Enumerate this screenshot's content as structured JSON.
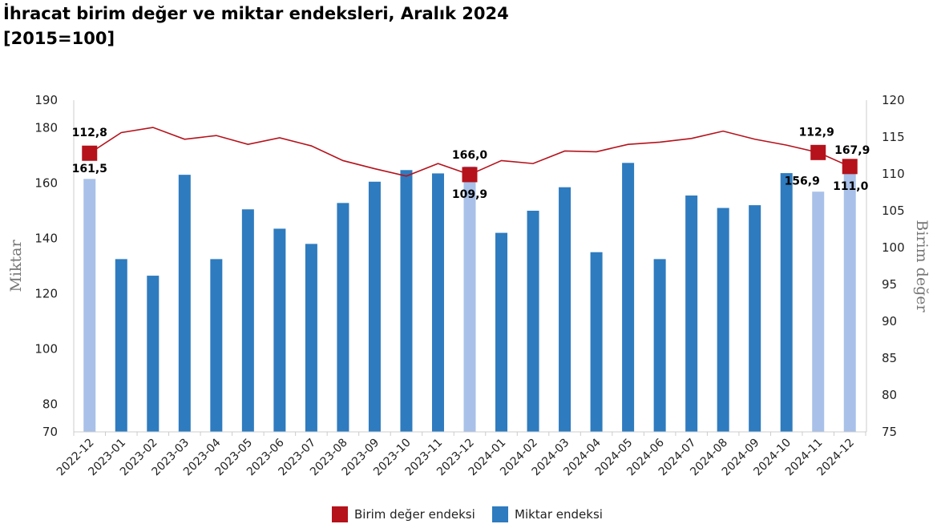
{
  "chart_data": {
    "type": "bar+line",
    "title": "İhracat birim değer ve miktar endeksleri, Aralık 2024",
    "subtitle": "[2015=100]",
    "categories": [
      "2022-12",
      "2023-01",
      "2023-02",
      "2023-03",
      "2023-04",
      "2023-05",
      "2023-06",
      "2023-07",
      "2023-08",
      "2023-09",
      "2023-10",
      "2023-11",
      "2023-12",
      "2024-01",
      "2024-02",
      "2024-03",
      "2024-04",
      "2024-05",
      "2024-06",
      "2024-07",
      "2024-08",
      "2024-09",
      "2024-10",
      "2024-11",
      "2024-12"
    ],
    "ylabel_left": "Miktar",
    "ylabel_right": "Birim değer",
    "y_left_ticks": [
      70,
      80,
      100,
      120,
      140,
      160,
      180,
      190
    ],
    "y_left_range": [
      70,
      190
    ],
    "y_right_ticks": [
      75,
      80,
      85,
      90,
      95,
      100,
      105,
      110,
      115,
      120
    ],
    "y_right_range": [
      75,
      120
    ],
    "highlight_indices": [
      0,
      12,
      23,
      24
    ],
    "series": [
      {
        "name": "Birim değer endeksi",
        "type": "line",
        "axis": "right",
        "color": "#b5121b",
        "values": [
          112.8,
          115.6,
          116.3,
          114.7,
          115.2,
          114.0,
          114.9,
          113.8,
          111.8,
          110.7,
          109.7,
          111.4,
          109.9,
          111.8,
          111.4,
          113.1,
          113.0,
          114.0,
          114.3,
          114.8,
          115.8,
          114.7,
          113.9,
          112.9,
          111.0
        ]
      },
      {
        "name": "Miktar endeksi",
        "type": "bar",
        "axis": "left",
        "color": "#2e7bbf",
        "highlight_color": "#a9c1e8",
        "values": [
          161.5,
          132.5,
          126.5,
          163.0,
          132.5,
          150.5,
          143.5,
          138.0,
          152.8,
          160.5,
          164.7,
          163.5,
          166.0,
          142.0,
          150.0,
          158.5,
          135.0,
          167.3,
          132.5,
          155.5,
          151.0,
          152.0,
          163.6,
          156.9,
          167.9
        ]
      }
    ],
    "data_labels": [
      {
        "index": 0,
        "line": "112,8",
        "bar": "161,5"
      },
      {
        "index": 12,
        "line": "109,9",
        "bar": "166,0"
      },
      {
        "index": 23,
        "line": "112,9",
        "bar": "156,9"
      },
      {
        "index": 24,
        "line": "111,0",
        "bar": "167,9"
      }
    ],
    "legend": {
      "position": "bottom-center",
      "entries": [
        {
          "label": "Birim değer endeksi",
          "color": "#b5121b"
        },
        {
          "label": "Miktar endeksi",
          "color": "#2e7bbf"
        }
      ]
    },
    "grid": false
  }
}
